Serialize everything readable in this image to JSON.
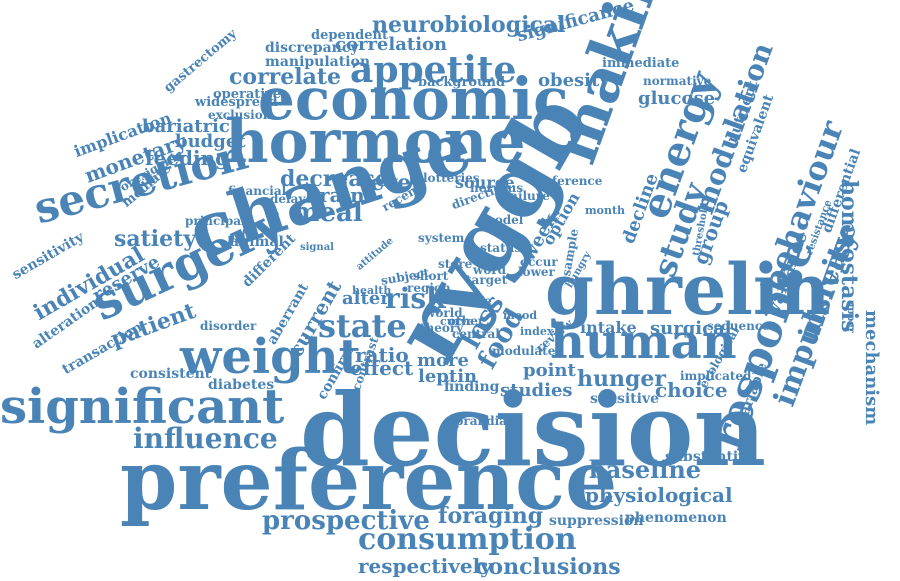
{
  "cloud": {
    "color": "#4a84b6",
    "words": [
      "decision",
      "preference",
      "change",
      "economic",
      "hormone",
      "ghrelin",
      "ryggb",
      "making",
      "significant",
      "surgery",
      "weight",
      "human",
      "secretion",
      "response",
      "energy",
      "state",
      "appetite",
      "influence",
      "prospective",
      "consumption",
      "baseline",
      "behaviour",
      "study",
      "impulsivity",
      "increase",
      "risk",
      "neurobiological",
      "correlation",
      "significance",
      "correlate",
      "modulation",
      "homeostasis",
      "mechanism",
      "hunger",
      "foraging",
      "physiological",
      "respectively",
      "conclusions",
      "patient",
      "satiety",
      "meal",
      "food",
      "loss",
      "level",
      "brain",
      "decrease",
      "glucose",
      "obesity",
      "individual",
      "reserve",
      "feeding",
      "budget",
      "bariatric",
      "monetary",
      "implication",
      "sensitivity",
      "alteration",
      "transaction",
      "diabetes",
      "effect",
      "ratio",
      "alter",
      "choice",
      "sensitive",
      "variance",
      "group",
      "decline",
      "leptin",
      "studies",
      "point",
      "more",
      "intake",
      "surgical",
      "suppression",
      "phenomenon",
      "substantive",
      "variable",
      "differential",
      "equivalent",
      "nutrient",
      "current",
      "aberrant",
      "animal",
      "different",
      "consistent",
      "confirm",
      "contrast",
      "finding",
      "prandial",
      "week",
      "option",
      "source",
      "lotteries",
      "reference",
      "manipulation",
      "discrepancy",
      "dependent",
      "immediate",
      "background",
      "gastrectomy",
      "operative",
      "widespread",
      "exclusion",
      "orexigenic",
      "mediate",
      "financial",
      "delayed",
      "principal",
      "disorder",
      "implicated",
      "sequence",
      "ecological",
      "threshold",
      "resistance",
      "normative",
      "upper",
      "sample",
      "hungry",
      "store",
      "attitude",
      "world",
      "central",
      "other",
      "modulate",
      "review",
      "index",
      "failure",
      "model",
      "month",
      "system",
      "status",
      "direction",
      "nervous",
      "health",
      "recent",
      "signal",
      "region",
      "subject",
      "target",
      "occur",
      "lower",
      "active",
      "curve",
      "theory",
      "short",
      "word",
      "mood"
    ]
  }
}
